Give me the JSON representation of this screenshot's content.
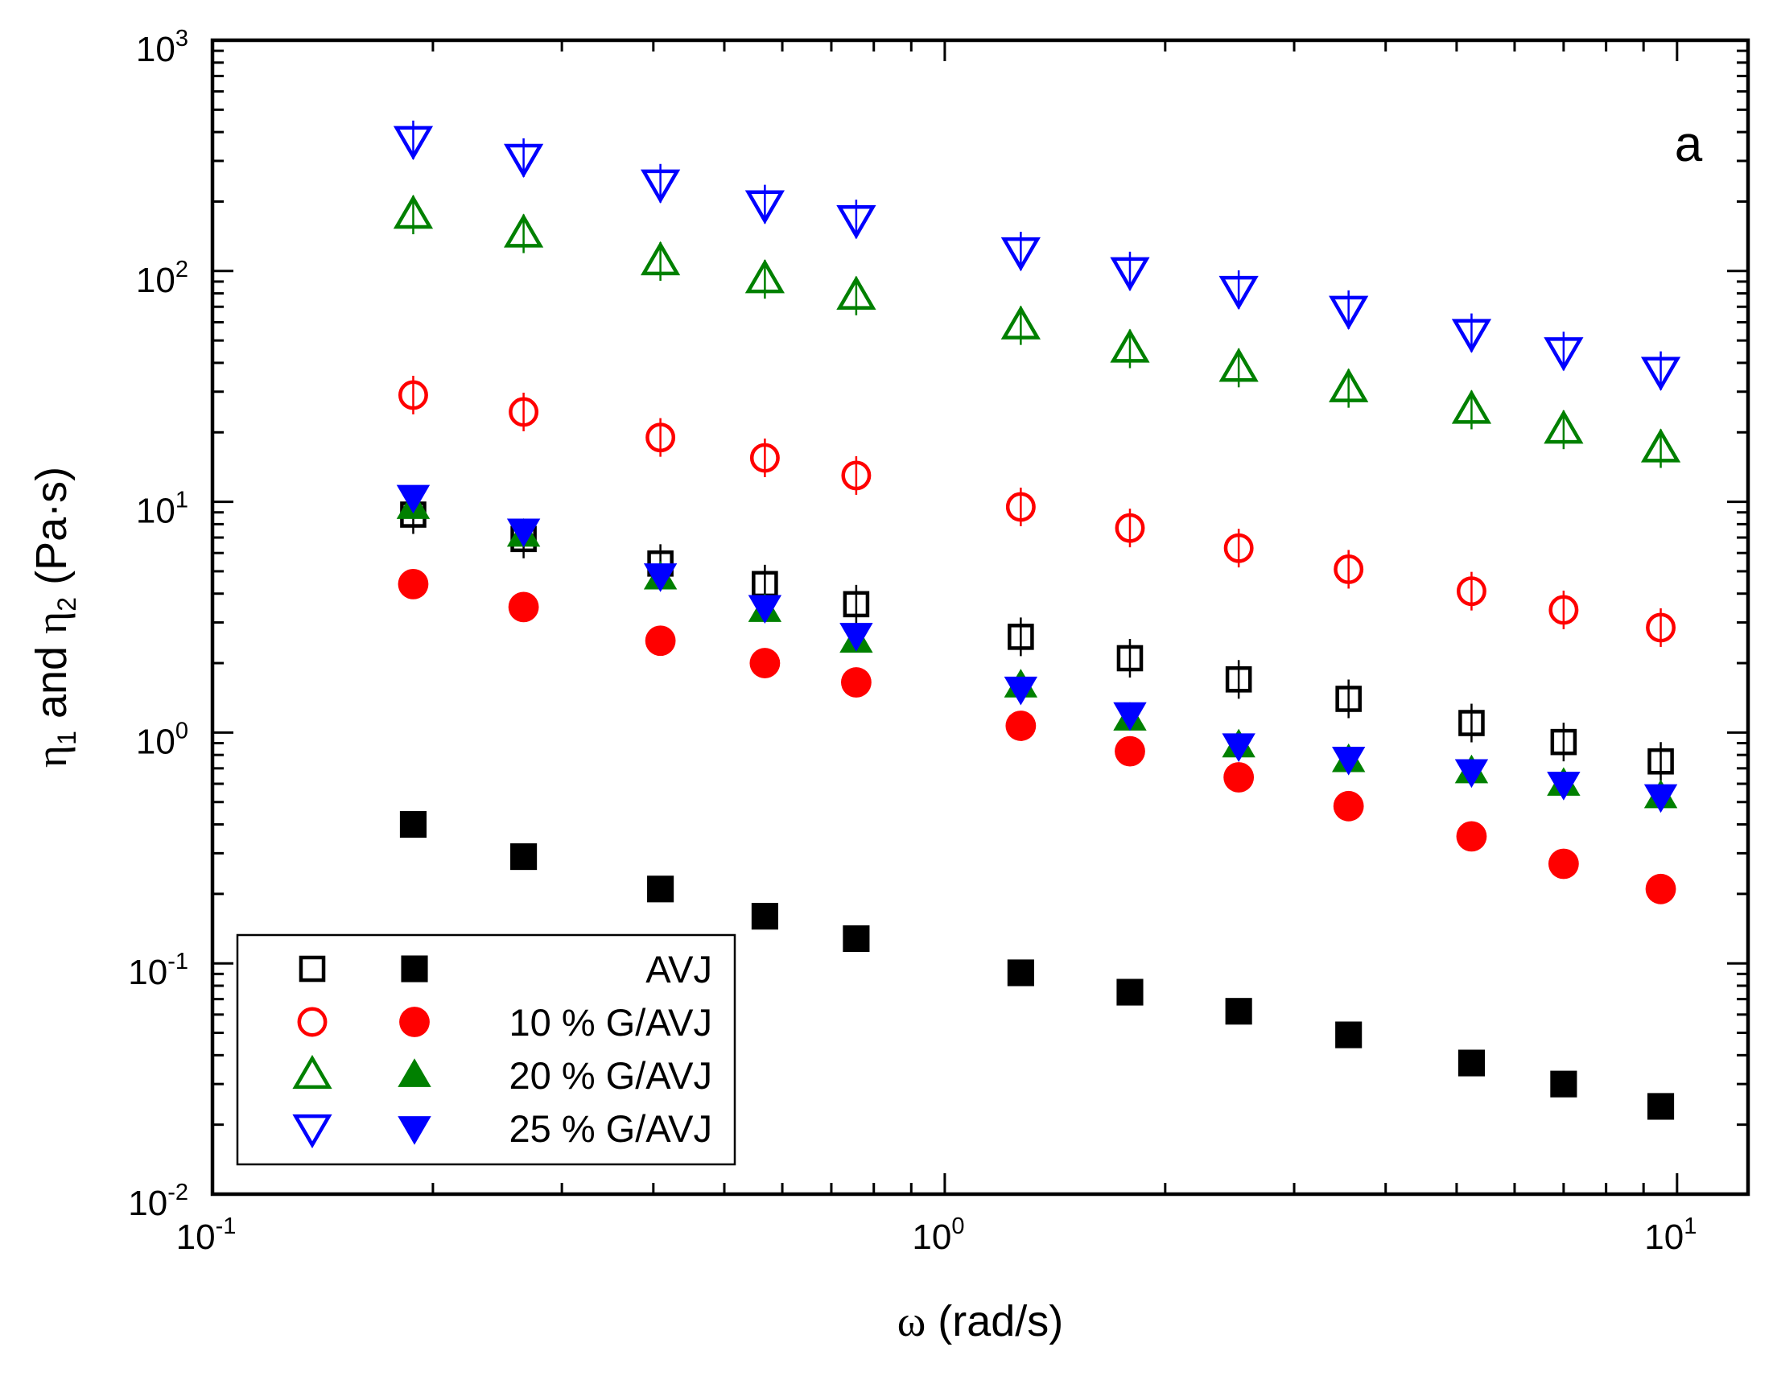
{
  "chart_data": {
    "type": "scatter",
    "scale": {
      "x": "log",
      "y": "log"
    },
    "xlim": [
      0.1,
      12.5
    ],
    "ylim": [
      0.01,
      1000
    ],
    "xlabel": {
      "symbol": "ω",
      "unit": " (rad/s)"
    },
    "ylabel": {
      "eta": "η",
      "sub1": "1",
      "and": " and ",
      "sub2": "2",
      "unit": " (Pa·s)"
    },
    "x_ticks": [
      {
        "base": "10",
        "exp": "-1",
        "value": 0.1
      },
      {
        "base": "10",
        "exp": "0",
        "value": 1
      },
      {
        "base": "10",
        "exp": "1",
        "value": 10
      }
    ],
    "y_ticks": [
      {
        "base": "10",
        "exp": "-2",
        "value": 0.01
      },
      {
        "base": "10",
        "exp": "-1",
        "value": 0.1
      },
      {
        "base": "10",
        "exp": "0",
        "value": 1
      },
      {
        "base": "10",
        "exp": "1",
        "value": 10
      },
      {
        "base": "10",
        "exp": "2",
        "value": 100
      },
      {
        "base": "10",
        "exp": "3",
        "value": 1000
      }
    ],
    "panel_label": "a",
    "x": [
      0.188,
      0.266,
      0.409,
      0.568,
      0.757,
      1.27,
      1.79,
      2.52,
      3.56,
      5.24,
      7.0,
      9.5
    ],
    "series": [
      {
        "name": "AVJ",
        "quantity": "η1",
        "marker": "square",
        "filled": false,
        "color": "#000000",
        "values": [
          8.8,
          6.9,
          5.4,
          4.4,
          3.6,
          2.6,
          2.1,
          1.7,
          1.4,
          1.1,
          0.91,
          0.75
        ]
      },
      {
        "name": "AVJ",
        "quantity": "η2",
        "marker": "square",
        "filled": true,
        "color": "#000000",
        "values": [
          0.4,
          0.29,
          0.21,
          0.16,
          0.128,
          0.091,
          0.075,
          0.062,
          0.049,
          0.037,
          0.03,
          0.024
        ]
      },
      {
        "name": "10 % G/AVJ",
        "quantity": "η1",
        "marker": "circle",
        "filled": false,
        "color": "#ff0000",
        "values": [
          29,
          24.5,
          19,
          15.5,
          13,
          9.5,
          7.7,
          6.3,
          5.1,
          4.1,
          3.4,
          2.85
        ]
      },
      {
        "name": "10 % G/AVJ",
        "quantity": "η2",
        "marker": "circle",
        "filled": true,
        "color": "#ff0000",
        "values": [
          4.4,
          3.5,
          2.5,
          2.0,
          1.65,
          1.07,
          0.83,
          0.64,
          0.48,
          0.355,
          0.27,
          0.21
        ]
      },
      {
        "name": "20 % G/AVJ",
        "quantity": "η1",
        "marker": "triangle-up",
        "filled": false,
        "color": "#008000",
        "values": [
          175,
          145,
          110,
          92,
          78,
          58,
          46,
          38,
          31,
          25,
          20.5,
          17
        ]
      },
      {
        "name": "20 % G/AVJ",
        "quantity": "η2",
        "marker": "triangle-up",
        "filled": true,
        "color": "#008000",
        "values": [
          9.5,
          7.2,
          4.7,
          3.4,
          2.5,
          1.6,
          1.15,
          0.88,
          0.76,
          0.68,
          0.6,
          0.53
        ]
      },
      {
        "name": "25 % G/AVJ",
        "quantity": "η1",
        "marker": "triangle-down",
        "filled": false,
        "color": "#0000ff",
        "values": [
          370,
          310,
          240,
          195,
          168,
          122,
          100,
          83,
          68,
          54,
          45,
          37
        ]
      },
      {
        "name": "25 % G/AVJ",
        "quantity": "η2",
        "marker": "triangle-down",
        "filled": true,
        "color": "#0000ff",
        "values": [
          10.5,
          7.5,
          4.8,
          3.5,
          2.65,
          1.55,
          1.2,
          0.88,
          0.77,
          0.68,
          0.6,
          0.53
        ]
      }
    ],
    "legend": {
      "placement": "bottom-left",
      "entries": [
        {
          "label": "AVJ",
          "marker": "square",
          "color": "#000000"
        },
        {
          "label": "10 % G/AVJ",
          "marker": "circle",
          "color": "#ff0000"
        },
        {
          "label": "20 % G/AVJ",
          "marker": "triangle-up",
          "color": "#008000"
        },
        {
          "label": "25 % G/AVJ",
          "marker": "triangle-down",
          "color": "#0000ff"
        }
      ]
    }
  }
}
